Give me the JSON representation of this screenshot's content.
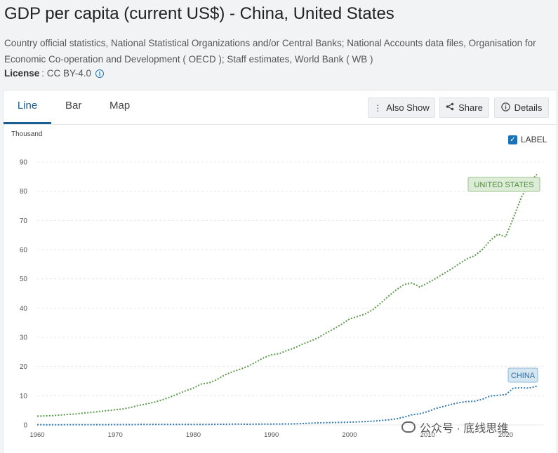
{
  "page": {
    "title": "GDP per capita (current US$) - China, United States",
    "source": "Country official statistics, National Statistical Organizations and/or Central Banks; National Accounts data files, Organisation for Economic Co-operation and Development ( OECD ); Staff estimates, World Bank ( WB )",
    "license_label": "License",
    "license_value": ": CC BY-4.0"
  },
  "tabs": [
    {
      "label": "Line",
      "active": true
    },
    {
      "label": "Bar",
      "active": false
    },
    {
      "label": "Map",
      "active": false
    }
  ],
  "toolbar": {
    "also_show": "Also Show",
    "share": "Share",
    "details": "Details"
  },
  "label_toggle": {
    "text": "LABEL",
    "checked": true
  },
  "watermark": "公众号 · 底线思维",
  "colors": {
    "us": "#5a9a48",
    "china": "#2f78b4",
    "us_label_bg": "#dcecd6",
    "china_label_bg": "#d5e6f3"
  },
  "chart_data": {
    "type": "line",
    "ylabel": "Thousand",
    "xlim": [
      1960,
      2023
    ],
    "ylim": [
      0,
      90
    ],
    "yticks": [
      0,
      10,
      20,
      30,
      40,
      50,
      60,
      70,
      80,
      90
    ],
    "xticks": [
      1960,
      1970,
      1980,
      1990,
      2000,
      2010,
      2020
    ],
    "grid": true,
    "series": [
      {
        "name": "UNITED STATES",
        "color": "#5a9a48",
        "points": [
          [
            1960,
            3.0
          ],
          [
            1961,
            3.1
          ],
          [
            1962,
            3.2
          ],
          [
            1963,
            3.4
          ],
          [
            1964,
            3.6
          ],
          [
            1965,
            3.8
          ],
          [
            1966,
            4.1
          ],
          [
            1967,
            4.3
          ],
          [
            1968,
            4.6
          ],
          [
            1969,
            4.9
          ],
          [
            1970,
            5.2
          ],
          [
            1971,
            5.5
          ],
          [
            1972,
            6.0
          ],
          [
            1973,
            6.7
          ],
          [
            1974,
            7.2
          ],
          [
            1975,
            7.8
          ],
          [
            1976,
            8.6
          ],
          [
            1977,
            9.5
          ],
          [
            1978,
            10.6
          ],
          [
            1979,
            11.7
          ],
          [
            1980,
            12.6
          ],
          [
            1981,
            14.0
          ],
          [
            1982,
            14.4
          ],
          [
            1983,
            15.5
          ],
          [
            1984,
            17.1
          ],
          [
            1985,
            18.2
          ],
          [
            1986,
            19.1
          ],
          [
            1987,
            20.1
          ],
          [
            1988,
            21.5
          ],
          [
            1989,
            23.0
          ],
          [
            1990,
            24.0
          ],
          [
            1991,
            24.4
          ],
          [
            1992,
            25.5
          ],
          [
            1993,
            26.4
          ],
          [
            1994,
            27.7
          ],
          [
            1995,
            28.7
          ],
          [
            1996,
            29.9
          ],
          [
            1997,
            31.5
          ],
          [
            1998,
            32.9
          ],
          [
            1999,
            34.5
          ],
          [
            2000,
            36.3
          ],
          [
            2001,
            37.1
          ],
          [
            2002,
            38.0
          ],
          [
            2003,
            39.5
          ],
          [
            2004,
            41.7
          ],
          [
            2005,
            44.1
          ],
          [
            2006,
            46.3
          ],
          [
            2007,
            48.1
          ],
          [
            2008,
            48.6
          ],
          [
            2009,
            47.2
          ],
          [
            2010,
            48.6
          ],
          [
            2011,
            50.1
          ],
          [
            2012,
            51.7
          ],
          [
            2013,
            53.3
          ],
          [
            2014,
            55.1
          ],
          [
            2015,
            56.8
          ],
          [
            2016,
            57.9
          ],
          [
            2017,
            60.0
          ],
          [
            2018,
            63.1
          ],
          [
            2019,
            65.3
          ],
          [
            2020,
            64.4
          ],
          [
            2021,
            71.0
          ],
          [
            2022,
            77.9
          ],
          [
            2023,
            82.8
          ],
          [
            2024,
            85.8
          ]
        ]
      },
      {
        "name": "CHINA",
        "color": "#2f78b4",
        "points": [
          [
            1960,
            0.09
          ],
          [
            1961,
            0.08
          ],
          [
            1962,
            0.07
          ],
          [
            1963,
            0.07
          ],
          [
            1964,
            0.09
          ],
          [
            1965,
            0.1
          ],
          [
            1966,
            0.1
          ],
          [
            1967,
            0.09
          ],
          [
            1968,
            0.09
          ],
          [
            1969,
            0.1
          ],
          [
            1970,
            0.11
          ],
          [
            1971,
            0.12
          ],
          [
            1972,
            0.13
          ],
          [
            1973,
            0.16
          ],
          [
            1974,
            0.16
          ],
          [
            1975,
            0.18
          ],
          [
            1976,
            0.16
          ],
          [
            1977,
            0.18
          ],
          [
            1978,
            0.16
          ],
          [
            1979,
            0.18
          ],
          [
            1980,
            0.19
          ],
          [
            1981,
            0.2
          ],
          [
            1982,
            0.2
          ],
          [
            1983,
            0.23
          ],
          [
            1984,
            0.25
          ],
          [
            1985,
            0.29
          ],
          [
            1986,
            0.28
          ],
          [
            1987,
            0.25
          ],
          [
            1988,
            0.28
          ],
          [
            1989,
            0.31
          ],
          [
            1990,
            0.32
          ],
          [
            1991,
            0.33
          ],
          [
            1992,
            0.37
          ],
          [
            1993,
            0.38
          ],
          [
            1994,
            0.47
          ],
          [
            1995,
            0.61
          ],
          [
            1996,
            0.71
          ],
          [
            1997,
            0.78
          ],
          [
            1998,
            0.83
          ],
          [
            1999,
            0.87
          ],
          [
            2000,
            0.96
          ],
          [
            2001,
            1.05
          ],
          [
            2002,
            1.15
          ],
          [
            2003,
            1.29
          ],
          [
            2004,
            1.51
          ],
          [
            2005,
            1.75
          ],
          [
            2006,
            2.1
          ],
          [
            2007,
            2.69
          ],
          [
            2008,
            3.47
          ],
          [
            2009,
            3.83
          ],
          [
            2010,
            4.55
          ],
          [
            2011,
            5.61
          ],
          [
            2012,
            6.3
          ],
          [
            2013,
            7.02
          ],
          [
            2014,
            7.64
          ],
          [
            2015,
            8.02
          ],
          [
            2016,
            8.09
          ],
          [
            2017,
            8.82
          ],
          [
            2018,
            9.91
          ],
          [
            2019,
            10.14
          ],
          [
            2020,
            10.41
          ],
          [
            2021,
            12.62
          ],
          [
            2022,
            12.72
          ],
          [
            2023,
            12.61
          ],
          [
            2024,
            13.3
          ]
        ]
      }
    ]
  }
}
